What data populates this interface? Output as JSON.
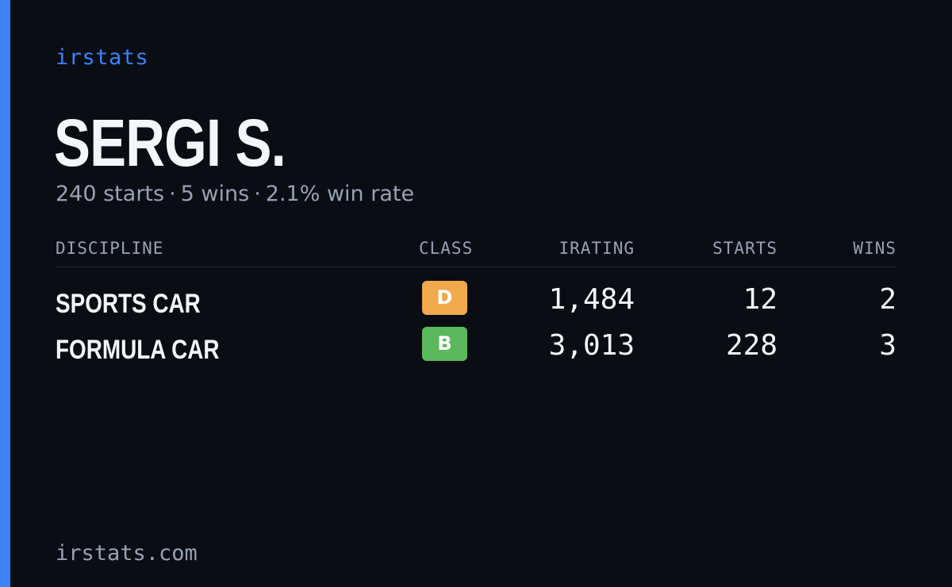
{
  "brand": "irstats",
  "player": {
    "name": "SERGI S.",
    "starts_text": "240 starts",
    "wins_text": "5 wins",
    "winrate_text": "2.1% win rate",
    "separator": "·"
  },
  "table": {
    "headers": {
      "discipline": "DISCIPLINE",
      "class": "CLASS",
      "irating": "IRATING",
      "starts": "STARTS",
      "wins": "WINS"
    },
    "rows": [
      {
        "discipline": "SPORTS CAR",
        "class": "D",
        "class_color": "#f0a94b",
        "irating": "1,484",
        "starts": "12",
        "wins": "2"
      },
      {
        "discipline": "FORMULA CAR",
        "class": "B",
        "class_color": "#5cb85c",
        "irating": "3,013",
        "starts": "228",
        "wins": "3"
      }
    ]
  },
  "footer": "irstats.com",
  "colors": {
    "accent": "#3b82f6",
    "background": "#0a0d14"
  }
}
